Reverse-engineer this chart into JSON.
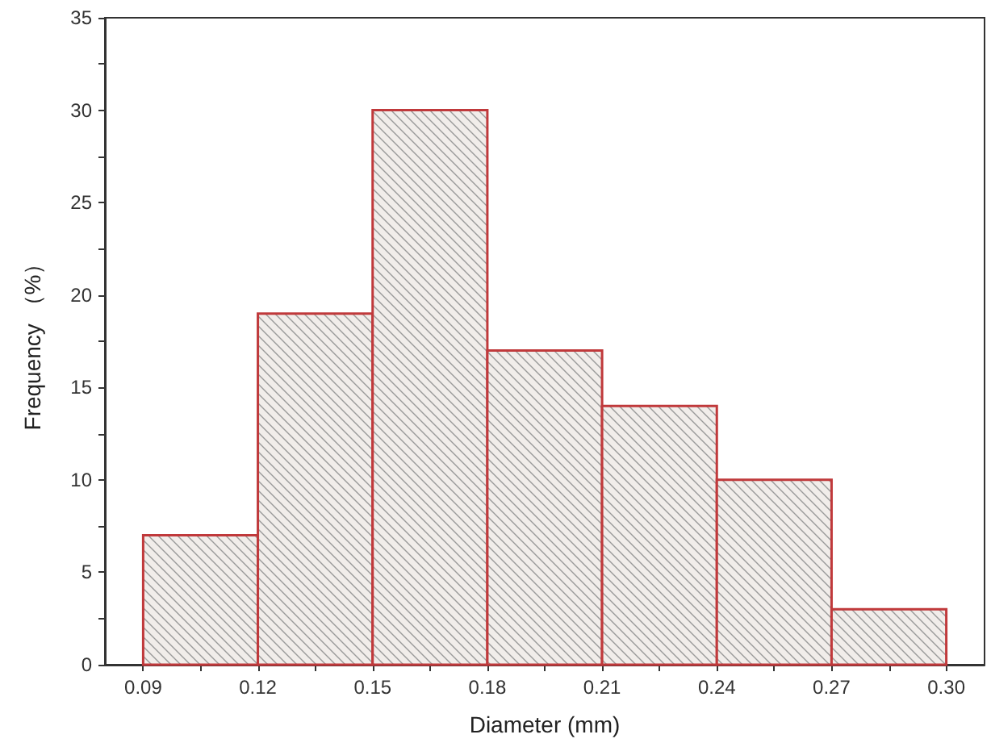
{
  "chart_data": {
    "type": "histogram",
    "xlabel": "Diameter (mm)",
    "ylabel": "Frequency （%）",
    "bins": [
      0.09,
      0.12,
      0.15,
      0.18,
      0.21,
      0.24,
      0.27,
      0.3
    ],
    "values": [
      7,
      19,
      30,
      17,
      14,
      10,
      3
    ],
    "color": "#c0393b",
    "xlim": [
      0.08,
      0.31
    ],
    "xticks": [
      0.09,
      {
        "value": 0.105,
        "label": null
      },
      0.12,
      {
        "value": 0.135,
        "label": null
      },
      0.15,
      {
        "value": 0.165,
        "label": null
      },
      0.18,
      {
        "value": 0.195,
        "label": null
      },
      0.21,
      {
        "value": 0.225,
        "label": null
      },
      0.24,
      {
        "value": 0.255,
        "label": null
      },
      0.27,
      {
        "value": 0.285,
        "label": null
      },
      {
        "value": 0.3,
        "label": "0.30"
      }
    ],
    "ylim": [
      0,
      35
    ],
    "yticks": [
      0,
      {
        "value": 2.5,
        "label": null
      },
      5,
      {
        "value": 7.5,
        "label": null
      },
      10,
      {
        "value": 12.5,
        "label": null
      },
      15,
      {
        "value": 17.5,
        "label": null
      },
      20,
      {
        "value": 22.5,
        "label": null
      },
      25,
      {
        "value": 27.5,
        "label": null
      },
      30,
      {
        "value": 32.5,
        "label": null
      },
      35
    ],
    "grid": false
  }
}
